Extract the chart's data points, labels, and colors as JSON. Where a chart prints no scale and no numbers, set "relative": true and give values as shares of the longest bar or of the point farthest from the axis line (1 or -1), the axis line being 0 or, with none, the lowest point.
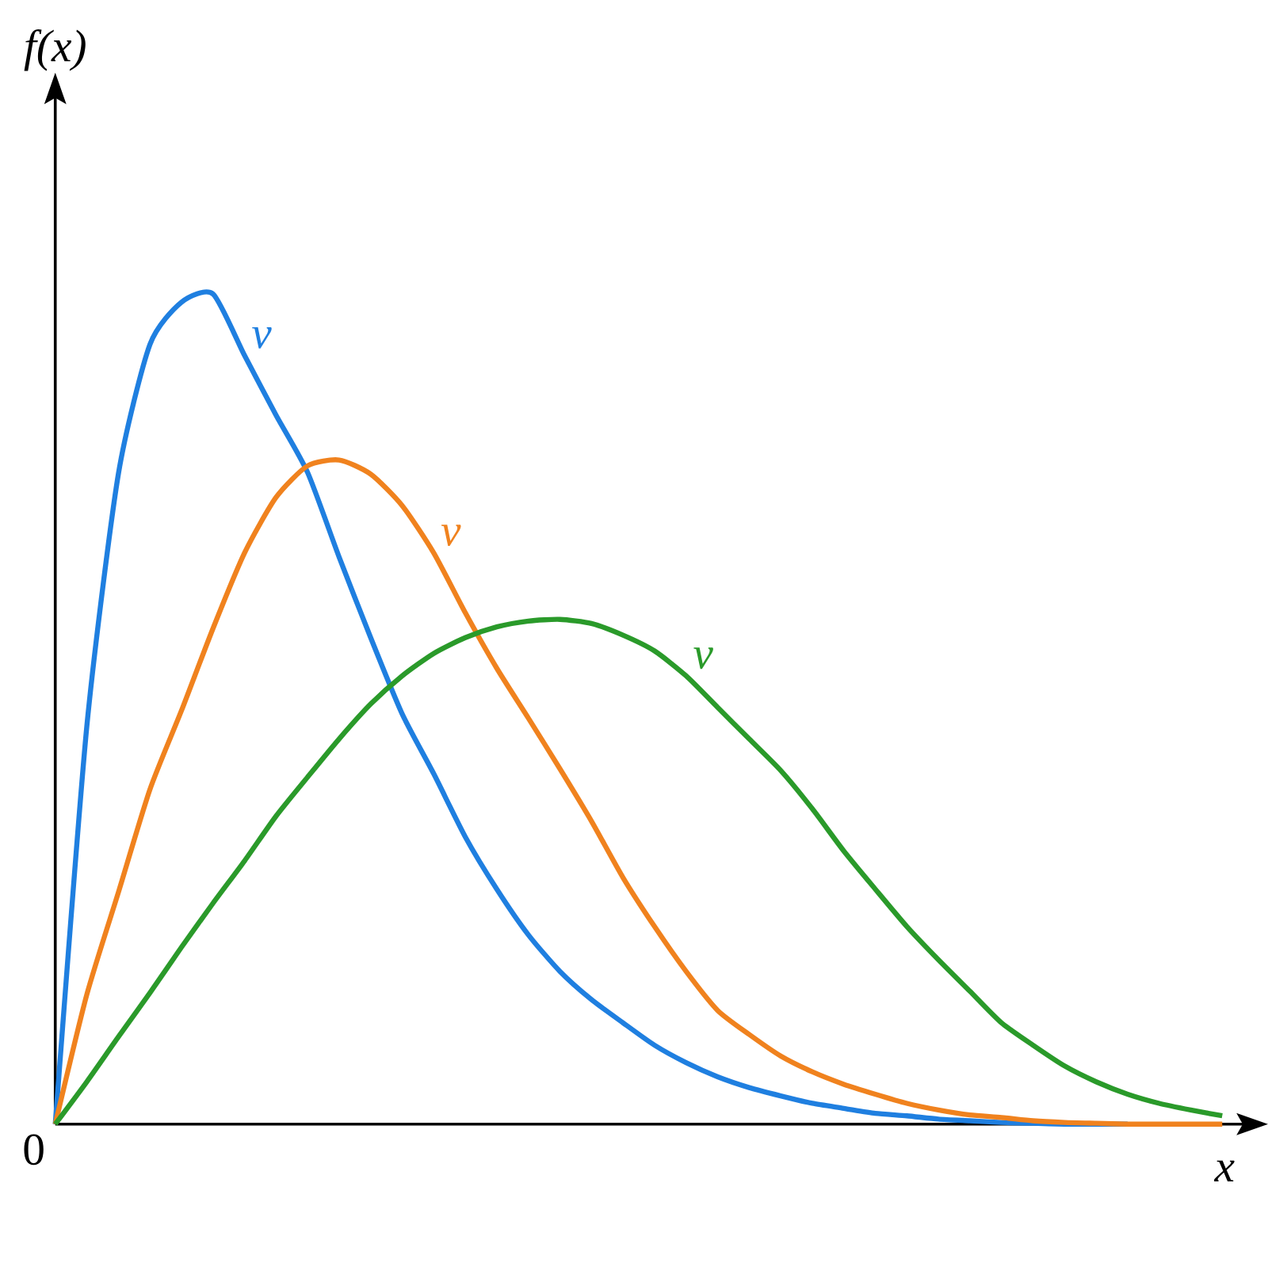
{
  "chart_data": {
    "type": "line",
    "relative": true,
    "xlabel": "x",
    "ylabel": "f(x)",
    "tick_labels": false,
    "annotations": [
      "0"
    ],
    "categories": [
      null,
      null,
      null,
      null,
      null,
      null,
      null,
      null,
      null,
      null,
      null,
      null,
      null,
      null,
      null,
      null,
      null,
      null,
      null,
      null,
      null,
      null,
      null,
      null,
      null,
      null,
      null,
      null,
      null,
      null,
      null,
      null,
      null,
      null,
      null,
      null,
      null,
      null
    ],
    "series": [
      {
        "name": "ν",
        "color": "#1f7fe0",
        "values": [
          0,
          0.479,
          0.783,
          0.939,
          0.99,
          1,
          0.926,
          0.854,
          0.785,
          0.683,
          0.586,
          0.494,
          0.422,
          0.346,
          0.283,
          0.228,
          0.184,
          0.15,
          0.122,
          0.095,
          0.074,
          0.057,
          0.044,
          0.034,
          0.025,
          0.019,
          0.013,
          0.01,
          0.006,
          0.004,
          0.002,
          0.001,
          0,
          0,
          0,
          null,
          null,
          null
        ]
      },
      {
        "name": "ν",
        "color": "#f0821e",
        "values": [
          0,
          0.156,
          0.279,
          0.403,
          0.498,
          0.597,
          0.688,
          0.755,
          0.793,
          0.8,
          0.783,
          0.745,
          0.688,
          0.616,
          0.549,
          0.489,
          0.428,
          0.365,
          0.297,
          0.238,
          0.184,
          0.137,
          0.108,
          0.082,
          0.063,
          0.048,
          0.036,
          0.025,
          0.017,
          0.011,
          0.008,
          0.004,
          0.002,
          0.001,
          0,
          0,
          0,
          0
        ]
      },
      {
        "name": "ν",
        "color": "#2a9a2a",
        "values": [
          0,
          0.051,
          0.105,
          0.158,
          0.213,
          0.266,
          0.317,
          0.371,
          0.418,
          0.464,
          0.506,
          0.54,
          0.567,
          0.586,
          0.599,
          0.606,
          0.608,
          0.603,
          0.589,
          0.57,
          0.54,
          0.502,
          0.464,
          0.426,
          0.38,
          0.329,
          0.283,
          0.238,
          0.198,
          0.16,
          0.122,
          0.095,
          0.07,
          0.051,
          0.036,
          0.025,
          0.017,
          0.01
        ]
      }
    ]
  }
}
